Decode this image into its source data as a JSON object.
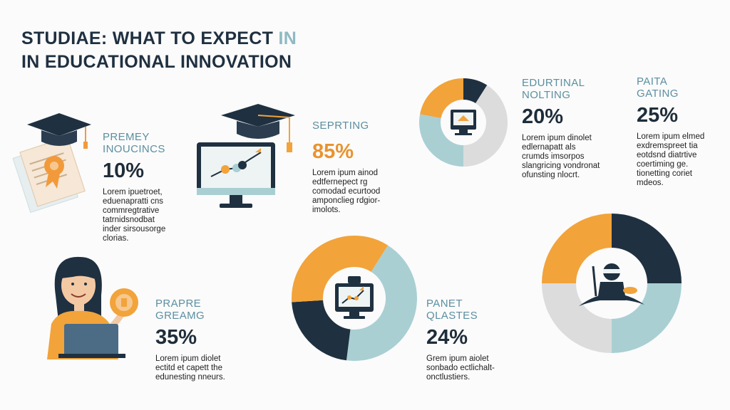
{
  "title": {
    "line1": "STUDIAE: WHAT TO EXPECT",
    "line1_accent": "IN",
    "line2": "IN EDUCATIONAL INNOVATION"
  },
  "colors": {
    "navy": "#1f3040",
    "orange": "#f2a33a",
    "light_blue": "#a9cfd3",
    "gray": "#dcdcdc"
  },
  "stats": [
    {
      "label_1": "PREMEY",
      "label_2": "INOUCINCS",
      "value": "10%",
      "desc": [
        "Lorem ipuetroet,",
        "eduenapratti cns",
        "commregtrative",
        "tatrnidsnodbat",
        "inder sirsousorge",
        "clorias."
      ],
      "icon": "diploma-graduation-cap-icon"
    },
    {
      "label_1": "SEPRTING",
      "label_2": "",
      "value": "85%",
      "desc": [
        "Lorem ipum ainod",
        "edtfernepect rg",
        "comodad ecurtood",
        "amponclieg rdgior-",
        "imolots."
      ],
      "icon": "computer-graduation-cap-icon"
    },
    {
      "label_1": "EDURTINAL",
      "label_2": "NOLTING",
      "value": "20%",
      "desc": [
        "Lorem ipum dinolet",
        "edlernapatt als",
        "crumds imsorpos",
        "slangricing vondronat",
        "ofunsting nlocrt."
      ],
      "icon": "monitor-icon"
    },
    {
      "label_1": "PAITA",
      "label_2": "GATING",
      "value": "25%",
      "desc": [
        "Lorem ipum elmed",
        "exdremspreet tia",
        "eotdsnd diatrtive",
        "coertiming ge.",
        "tionetting coriet",
        "mdeos."
      ],
      "icon": ""
    },
    {
      "label_1": "PRAPRE",
      "label_2": "GREAMG",
      "value": "35%",
      "desc": [
        "Lorem ipum diolet",
        "ectitd et capett the",
        "edunesting nneurs."
      ],
      "icon": "student-laptop-icon"
    },
    {
      "label_1": "PANET",
      "label_2": "QLASTES",
      "value": "24%",
      "desc": [
        "Grem ipum aiolet",
        "sonbado ectlichalt-",
        "onctlustiers."
      ],
      "icon": "computer-chart-icon"
    }
  ],
  "donuts": [
    {
      "name": "donut-top",
      "segments": [
        {
          "color": "#1f3040",
          "value": 0.09
        },
        {
          "color": "#dcdcdc",
          "value": 0.41
        },
        {
          "color": "#a9cfd3",
          "value": 0.28
        },
        {
          "color": "#f2a33a",
          "value": 0.22
        }
      ],
      "center_icon": "monitor-icon"
    },
    {
      "name": "donut-middle",
      "segments": [
        {
          "color": "#f2a33a",
          "value": 0.09
        },
        {
          "color": "#a9cfd3",
          "value": 0.43
        },
        {
          "color": "#1f3040",
          "value": 0.22
        },
        {
          "color": "#f2a33a",
          "value": 0.26
        }
      ],
      "center_icon": "computer-chart-icon"
    },
    {
      "name": "donut-right",
      "segments": [
        {
          "color": "#1f3040",
          "value": 0.25
        },
        {
          "color": "#a9cfd3",
          "value": 0.25
        },
        {
          "color": "#dcdcdc",
          "value": 0.25
        },
        {
          "color": "#f2a33a",
          "value": 0.25
        }
      ],
      "center_icon": "ninja-figure-icon"
    }
  ]
}
